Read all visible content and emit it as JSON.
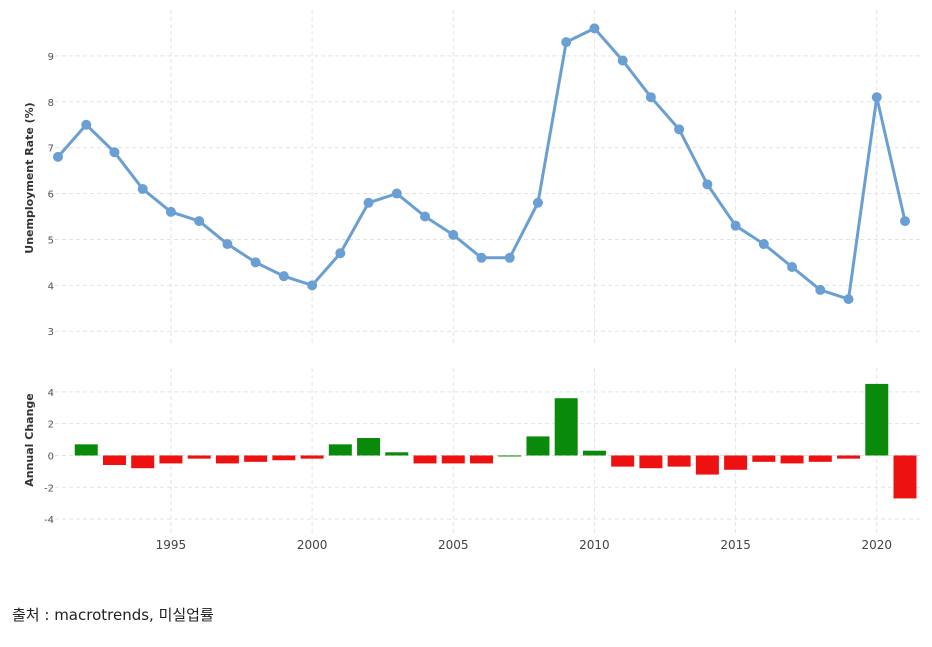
{
  "chart_data": [
    {
      "type": "line",
      "ylabel": "Unemployment Rate (%)",
      "ylim": [
        2.7,
        10
      ],
      "yticks": [
        "3",
        "4",
        "5",
        "6",
        "7",
        "8",
        "9"
      ],
      "x": [
        1991,
        1992,
        1993,
        1994,
        1995,
        1996,
        1997,
        1998,
        1999,
        2000,
        2001,
        2002,
        2003,
        2004,
        2005,
        2006,
        2007,
        2008,
        2009,
        2010,
        2011,
        2012,
        2013,
        2014,
        2015,
        2016,
        2017,
        2018,
        2019,
        2020,
        2021
      ],
      "series": [
        {
          "values": [
            6.8,
            7.5,
            6.9,
            6.1,
            5.6,
            5.4,
            4.9,
            4.5,
            4.2,
            4.0,
            4.7,
            5.8,
            6.0,
            5.5,
            5.1,
            4.6,
            4.6,
            5.8,
            9.3,
            9.6,
            8.9,
            8.1,
            7.4,
            6.2,
            5.3,
            4.9,
            4.4,
            3.9,
            3.7,
            8.1,
            5.4
          ],
          "color": "#6a9fd4"
        }
      ],
      "grid": true
    },
    {
      "type": "bar",
      "ylabel": "Annual Change",
      "ylim": [
        -5,
        5.5
      ],
      "yticks": [
        "-4",
        "-2",
        "0",
        "2",
        "4"
      ],
      "x": [
        1992,
        1993,
        1994,
        1995,
        1996,
        1997,
        1998,
        1999,
        2000,
        2001,
        2002,
        2003,
        2004,
        2005,
        2006,
        2007,
        2008,
        2009,
        2010,
        2011,
        2012,
        2013,
        2014,
        2015,
        2016,
        2017,
        2018,
        2019,
        2020,
        2021
      ],
      "values": [
        0.7,
        -0.6,
        -0.8,
        -0.5,
        -0.2,
        -0.5,
        -0.4,
        -0.3,
        -0.2,
        0.7,
        1.1,
        0.2,
        -0.5,
        -0.5,
        -0.5,
        0.0,
        1.2,
        3.6,
        0.3,
        -0.7,
        -0.8,
        -0.7,
        -1.2,
        -0.9,
        -0.4,
        -0.5,
        -0.4,
        -0.2,
        4.5,
        -2.7
      ],
      "positive_color": "#0a8a0a",
      "negative_color": "#ee1111",
      "grid": true
    }
  ],
  "x_axis_ticks": [
    "1995",
    "2000",
    "2005",
    "2010",
    "2015",
    "2020"
  ],
  "source_caption": "출처 : macrotrends, 미실업률"
}
